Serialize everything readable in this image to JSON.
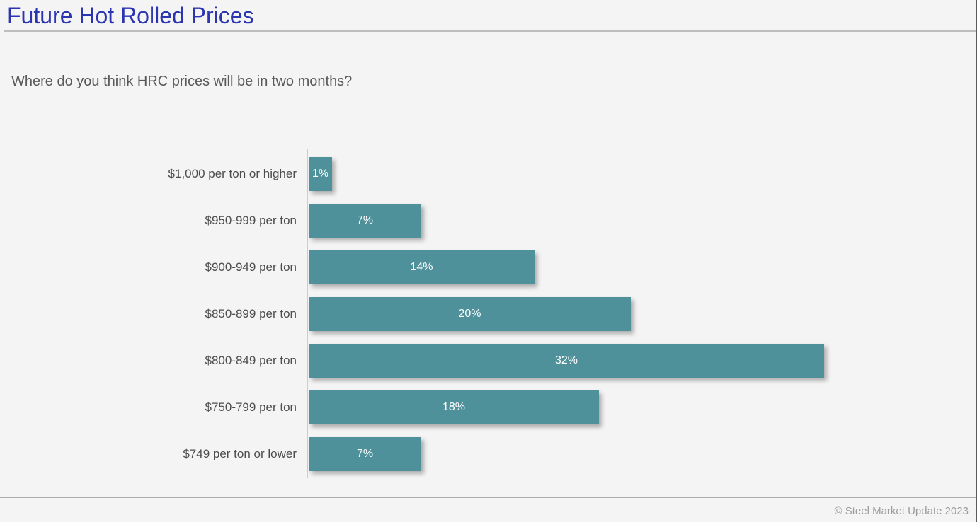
{
  "page": {
    "title": "Future Hot Rolled Prices",
    "question": "Where do you think HRC prices will be in two months?",
    "footer_credit": "© Steel Market Update 2023"
  },
  "colors": {
    "background": "#F4F4F4",
    "title": "#2B35AF",
    "bar": "#4F919A",
    "bar_label_text": "#FFFFFF",
    "category_label_text": "#4D4D4D",
    "question_text": "#595959",
    "divider": "#BDBDBD",
    "footer_text": "#9C9C9C"
  },
  "chart_data": {
    "type": "bar",
    "orientation": "horizontal",
    "title": "Future Hot Rolled Prices",
    "subtitle": "Where do you think HRC prices will be in two months?",
    "categories": [
      "$1,000 per ton or higher",
      "$950-999 per ton",
      "$900-949 per ton",
      "$850-899 per ton",
      "$800-849 per ton",
      "$750-799 per ton",
      "$749 per ton or lower"
    ],
    "values": [
      1,
      7,
      14,
      20,
      32,
      18,
      7
    ],
    "value_labels": [
      "1%",
      "7%",
      "14%",
      "20%",
      "32%",
      "18%",
      "7%"
    ],
    "xlabel": "",
    "ylabel": "",
    "xlim": [
      0,
      32
    ],
    "grid": false,
    "legend": false,
    "data_labels_position": "inside-center"
  }
}
